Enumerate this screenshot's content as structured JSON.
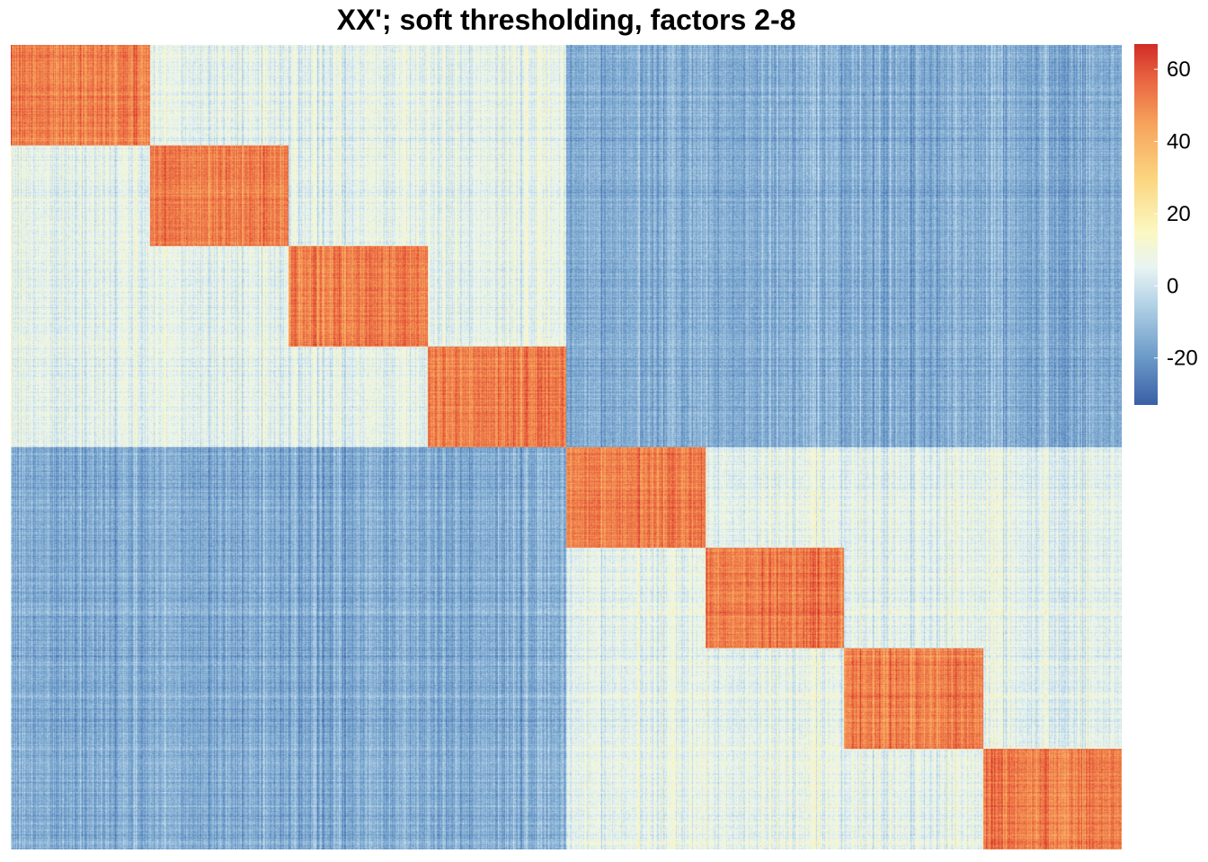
{
  "title": "XX'; soft thresholding, factors 2-8",
  "chart_data": {
    "type": "heatmap",
    "title": "XX'; soft thresholding, factors 2-8",
    "xlabel": "",
    "ylabel": "",
    "n_blocks": 8,
    "group_a_blocks": [
      1,
      2,
      3,
      4
    ],
    "group_b_blocks": [
      5,
      6,
      7,
      8
    ],
    "block_mean_values": {
      "diagonal": 52,
      "same_group_off_diagonal": 5,
      "cross_group": -15
    },
    "color_scale": {
      "min": -33,
      "max": 67,
      "stops": [
        {
          "value": -33,
          "color": "#3A60A6"
        },
        {
          "value": -20,
          "color": "#6B9AC8"
        },
        {
          "value": -5,
          "color": "#B5D3E7"
        },
        {
          "value": 5,
          "color": "#E8F4F3"
        },
        {
          "value": 15,
          "color": "#FBF8C2"
        },
        {
          "value": 30,
          "color": "#FBD57F"
        },
        {
          "value": 45,
          "color": "#F7A35C"
        },
        {
          "value": 58,
          "color": "#E8613F"
        },
        {
          "value": 67,
          "color": "#D22D27"
        }
      ]
    },
    "legend": {
      "position": "right",
      "ticks": [
        60,
        40,
        20,
        0,
        -20
      ],
      "tick_labels": [
        "60",
        "40",
        "20",
        "0",
        "-20"
      ]
    },
    "grid": false
  }
}
